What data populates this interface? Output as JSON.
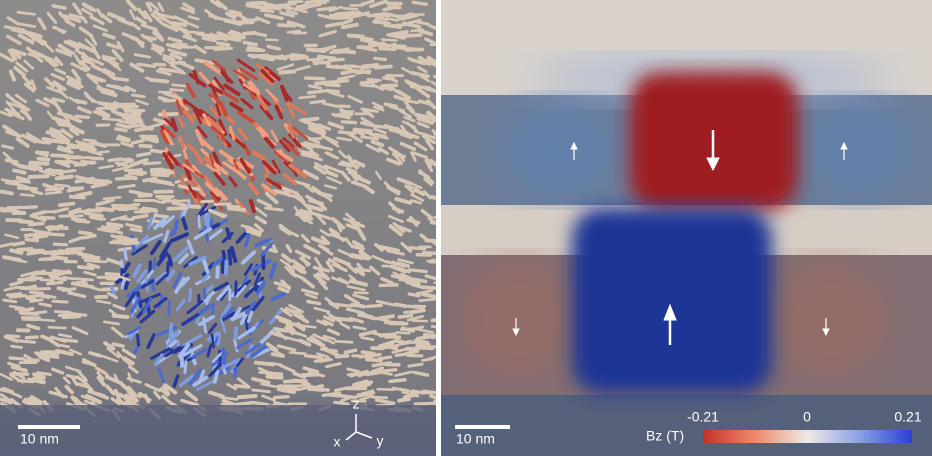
{
  "left_panel": {
    "scale_bar": "10 nm",
    "axes": {
      "z": "z",
      "x": "x",
      "y": "y"
    }
  },
  "right_panel": {
    "scale_bar": "10 nm",
    "colorbar": {
      "label": "Bz (T)",
      "ticks": [
        "-0.21",
        "0",
        "0.21"
      ]
    }
  }
}
